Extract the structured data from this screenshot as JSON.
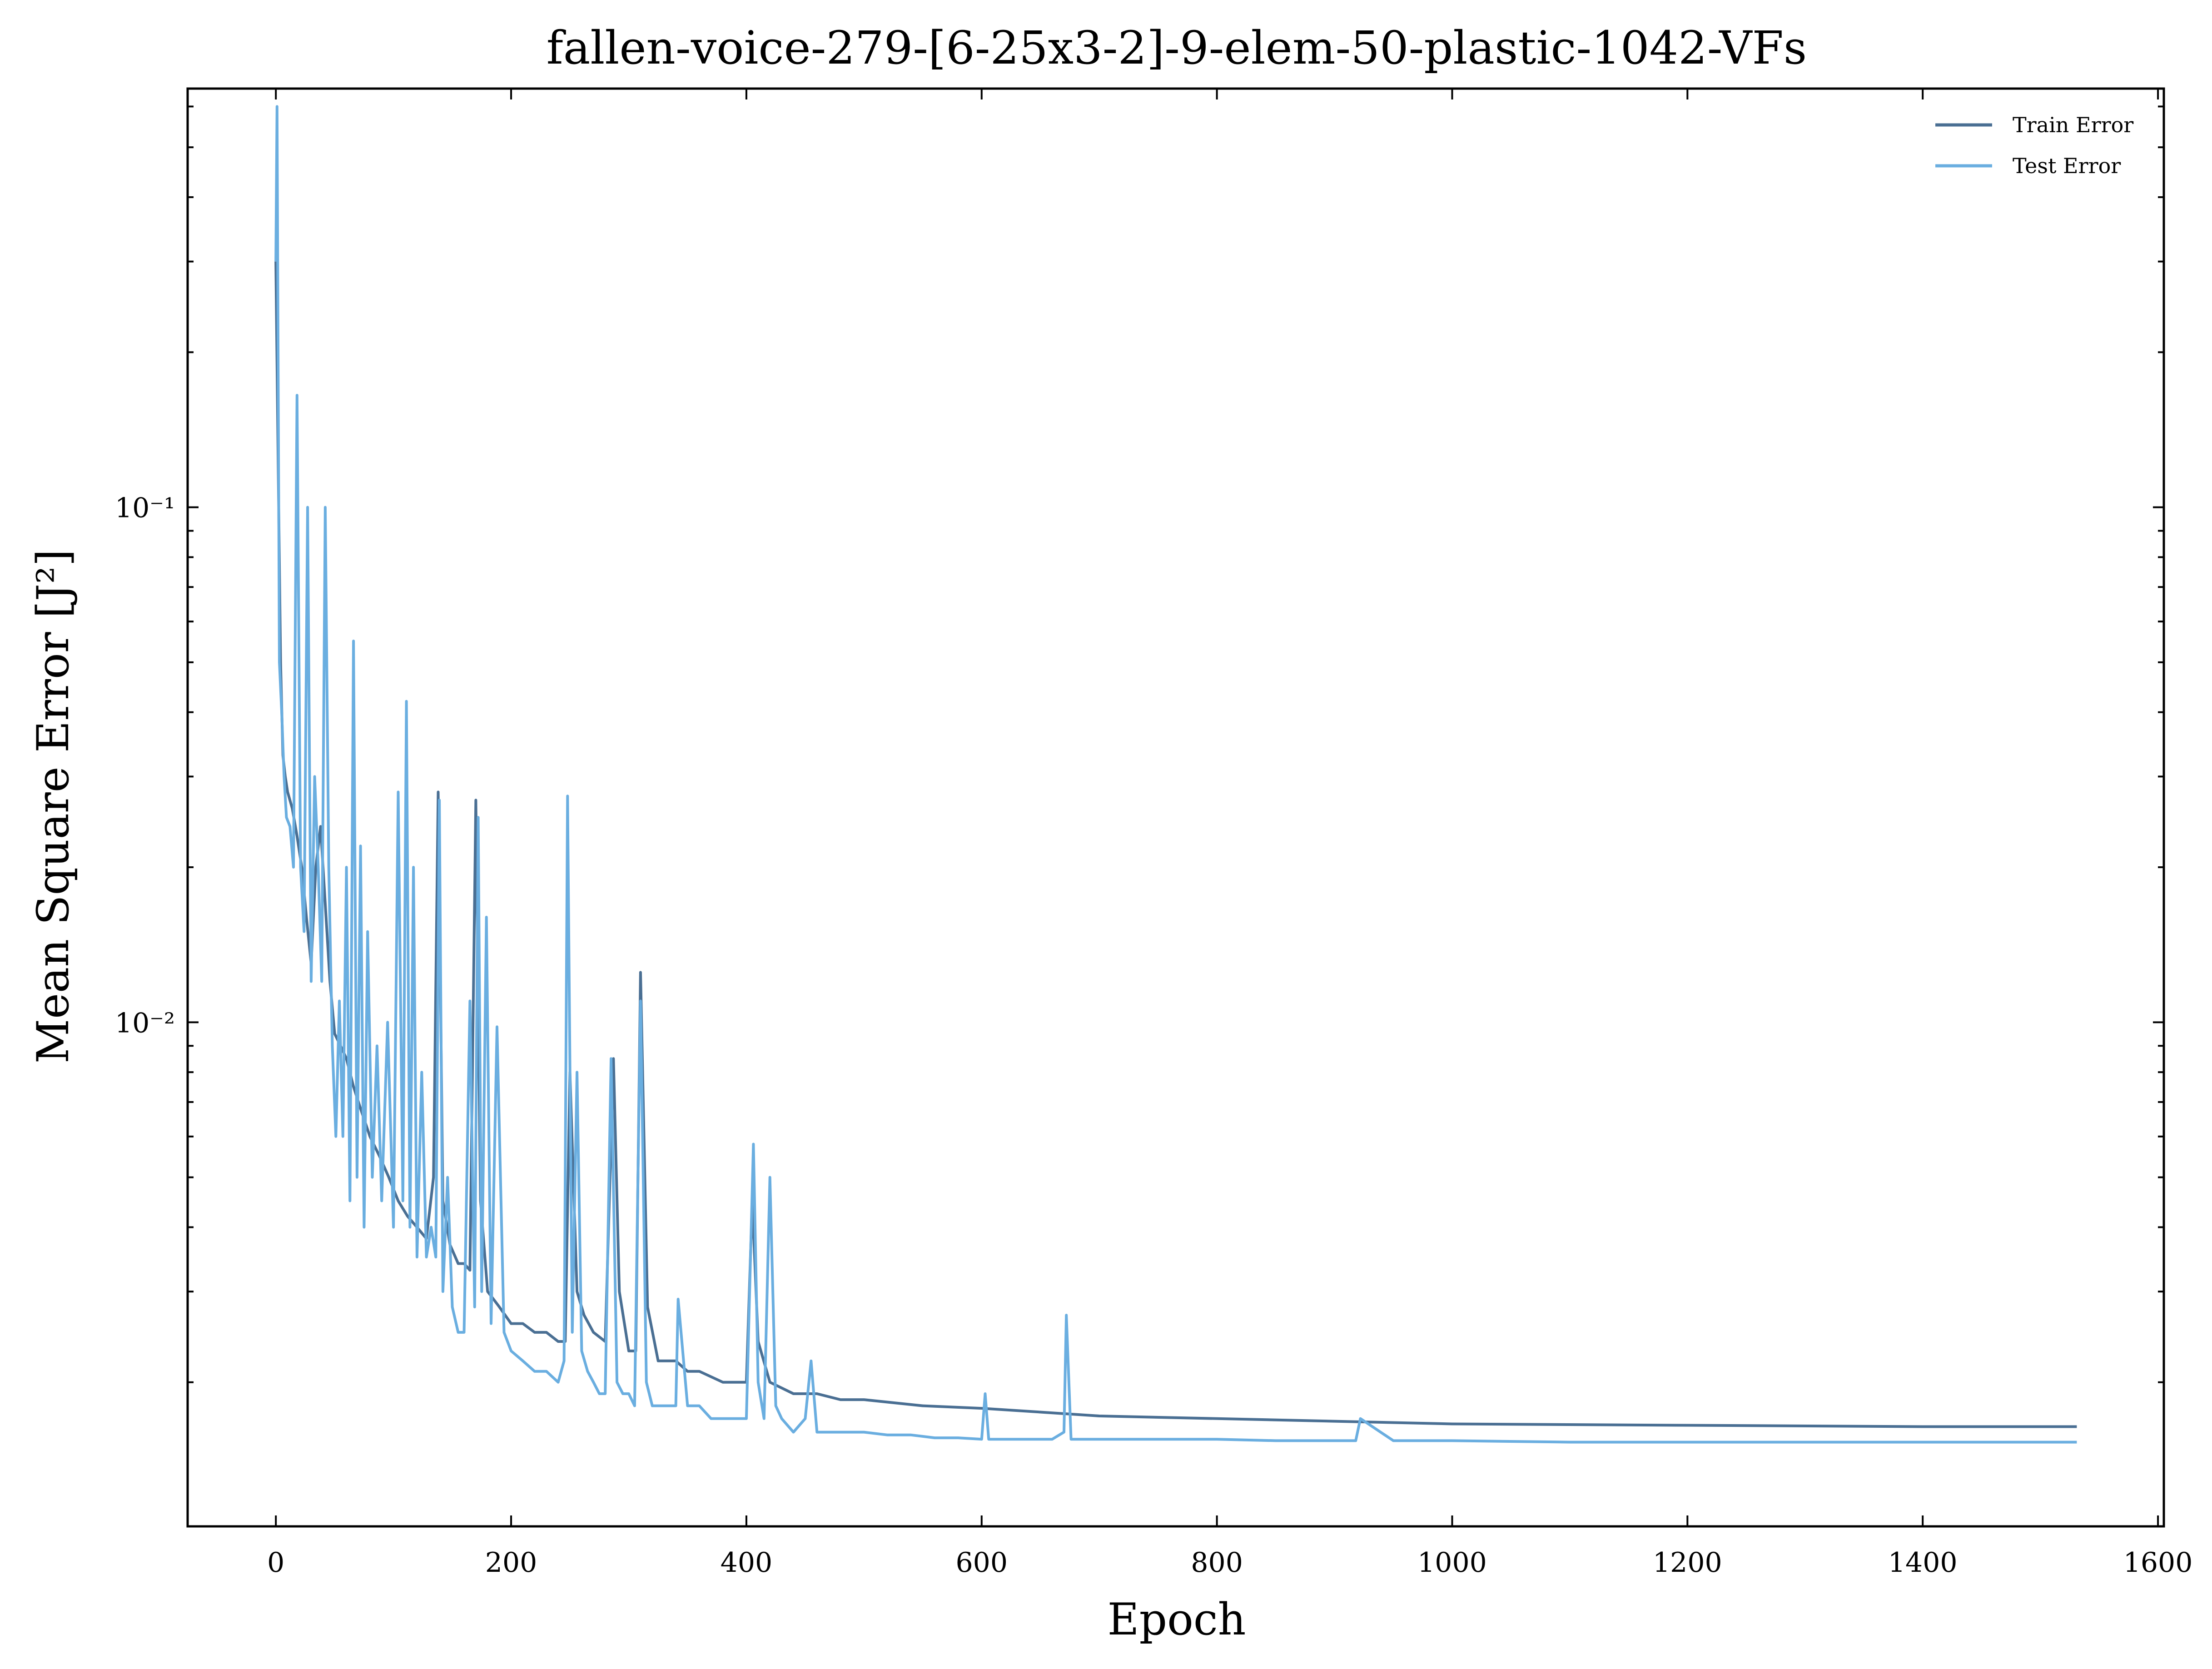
{
  "chart_data": {
    "type": "line",
    "title": "fallen-voice-279-[6-25x3-2]-9-elem-50-plastic-1042-VFs",
    "xlabel": "Epoch",
    "ylabel": "Mean Square Error [J²]",
    "x_scale": "linear",
    "y_scale": "log",
    "xlim": [
      -75,
      1605
    ],
    "ylim": [
      0.00105,
      0.65
    ],
    "x_ticks": [
      0,
      200,
      400,
      600,
      800,
      1000,
      1200,
      1400,
      1600
    ],
    "x_tick_labels": [
      "0",
      "200",
      "400",
      "600",
      "800",
      "1000",
      "1200",
      "1400",
      "1600"
    ],
    "y_major_ticks": [
      0.1,
      0.01
    ],
    "y_tick_labels": [
      "10⁻¹",
      "10⁻²"
    ],
    "grid": false,
    "legend_position": "top-right",
    "colors": {
      "train": "#4a6f93",
      "test": "#6aaee0"
    },
    "series": [
      {
        "name": "Train Error",
        "x": [
          0,
          2,
          4,
          6,
          8,
          10,
          14,
          18,
          22,
          26,
          30,
          34,
          38,
          42,
          46,
          50,
          55,
          60,
          66,
          72,
          80,
          88,
          96,
          104,
          112,
          120,
          128,
          134,
          138,
          142,
          148,
          155,
          160,
          165,
          170,
          174,
          180,
          185,
          190,
          200,
          210,
          220,
          230,
          240,
          246,
          250,
          256,
          262,
          270,
          280,
          287,
          292,
          300,
          306,
          310,
          316,
          325,
          340,
          350,
          360,
          380,
          400,
          405,
          410,
          420,
          440,
          460,
          480,
          500,
          550,
          600,
          650,
          700,
          800,
          900,
          1000,
          1200,
          1400,
          1531
        ],
        "y": [
          0.3,
          0.12,
          0.05,
          0.033,
          0.03,
          0.028,
          0.026,
          0.023,
          0.02,
          0.016,
          0.013,
          0.02,
          0.024,
          0.017,
          0.012,
          0.0095,
          0.009,
          0.0085,
          0.0075,
          0.0068,
          0.006,
          0.0055,
          0.005,
          0.0045,
          0.0042,
          0.004,
          0.0038,
          0.005,
          0.028,
          0.0045,
          0.0037,
          0.0034,
          0.0034,
          0.0033,
          0.027,
          0.0045,
          0.003,
          0.0029,
          0.0028,
          0.0026,
          0.0026,
          0.0025,
          0.0025,
          0.0024,
          0.0024,
          0.008,
          0.003,
          0.0027,
          0.0025,
          0.0024,
          0.0085,
          0.003,
          0.0023,
          0.0023,
          0.0125,
          0.0028,
          0.0022,
          0.0022,
          0.0021,
          0.0021,
          0.002,
          0.002,
          0.0045,
          0.0024,
          0.002,
          0.0019,
          0.0019,
          0.00185,
          0.00185,
          0.0018,
          0.00178,
          0.00175,
          0.00172,
          0.0017,
          0.00168,
          0.00166,
          0.00165,
          0.00164,
          0.00164
        ]
      },
      {
        "name": "Test Error",
        "x": [
          0,
          1,
          3,
          5,
          7,
          9,
          12,
          15,
          18,
          21,
          24,
          27,
          30,
          33,
          36,
          39,
          42,
          45,
          48,
          51,
          54,
          57,
          60,
          63,
          66,
          69,
          72,
          75,
          78,
          82,
          86,
          90,
          95,
          100,
          104,
          108,
          111,
          114,
          117,
          120,
          124,
          128,
          132,
          136,
          139,
          142,
          146,
          150,
          155,
          160,
          165,
          169,
          172,
          175,
          179,
          183,
          188,
          194,
          200,
          210,
          220,
          230,
          240,
          245,
          248,
          252,
          256,
          260,
          265,
          270,
          275,
          280,
          285,
          290,
          295,
          300,
          305,
          310,
          315,
          320,
          330,
          340,
          342,
          350,
          360,
          370,
          380,
          390,
          400,
          406,
          410,
          415,
          420,
          425,
          430,
          440,
          450,
          455,
          460,
          480,
          500,
          520,
          540,
          560,
          580,
          600,
          603,
          606,
          620,
          640,
          660,
          670,
          672,
          676,
          690,
          720,
          750,
          780,
          800,
          850,
          900,
          918,
          922,
          950,
          1000,
          1100,
          1200,
          1300,
          1400,
          1531
        ],
        "y": [
          0.3,
          0.6,
          0.05,
          0.04,
          0.03,
          0.025,
          0.024,
          0.02,
          0.165,
          0.02,
          0.015,
          0.1,
          0.012,
          0.03,
          0.02,
          0.012,
          0.1,
          0.02,
          0.009,
          0.006,
          0.011,
          0.006,
          0.02,
          0.0045,
          0.055,
          0.005,
          0.022,
          0.004,
          0.015,
          0.005,
          0.009,
          0.0045,
          0.01,
          0.004,
          0.028,
          0.0045,
          0.042,
          0.004,
          0.02,
          0.0035,
          0.008,
          0.0035,
          0.004,
          0.0035,
          0.027,
          0.003,
          0.005,
          0.0028,
          0.0025,
          0.0025,
          0.011,
          0.0028,
          0.025,
          0.003,
          0.016,
          0.0026,
          0.0098,
          0.0025,
          0.0023,
          0.0022,
          0.0021,
          0.0021,
          0.002,
          0.0022,
          0.0275,
          0.0025,
          0.008,
          0.0023,
          0.0021,
          0.002,
          0.0019,
          0.0019,
          0.0085,
          0.002,
          0.0019,
          0.0019,
          0.0018,
          0.011,
          0.002,
          0.0018,
          0.0018,
          0.0018,
          0.0029,
          0.0018,
          0.0018,
          0.0017,
          0.0017,
          0.0017,
          0.0017,
          0.0058,
          0.002,
          0.0017,
          0.005,
          0.0018,
          0.0017,
          0.0016,
          0.0017,
          0.0022,
          0.0016,
          0.0016,
          0.0016,
          0.00158,
          0.00158,
          0.00156,
          0.00156,
          0.00155,
          0.0019,
          0.00155,
          0.00155,
          0.00155,
          0.00155,
          0.0016,
          0.0027,
          0.00155,
          0.00155,
          0.00155,
          0.00155,
          0.00155,
          0.00155,
          0.00154,
          0.00154,
          0.00154,
          0.0017,
          0.00154,
          0.00154,
          0.00153,
          0.00153,
          0.00153,
          0.00153,
          0.00153
        ]
      }
    ]
  }
}
